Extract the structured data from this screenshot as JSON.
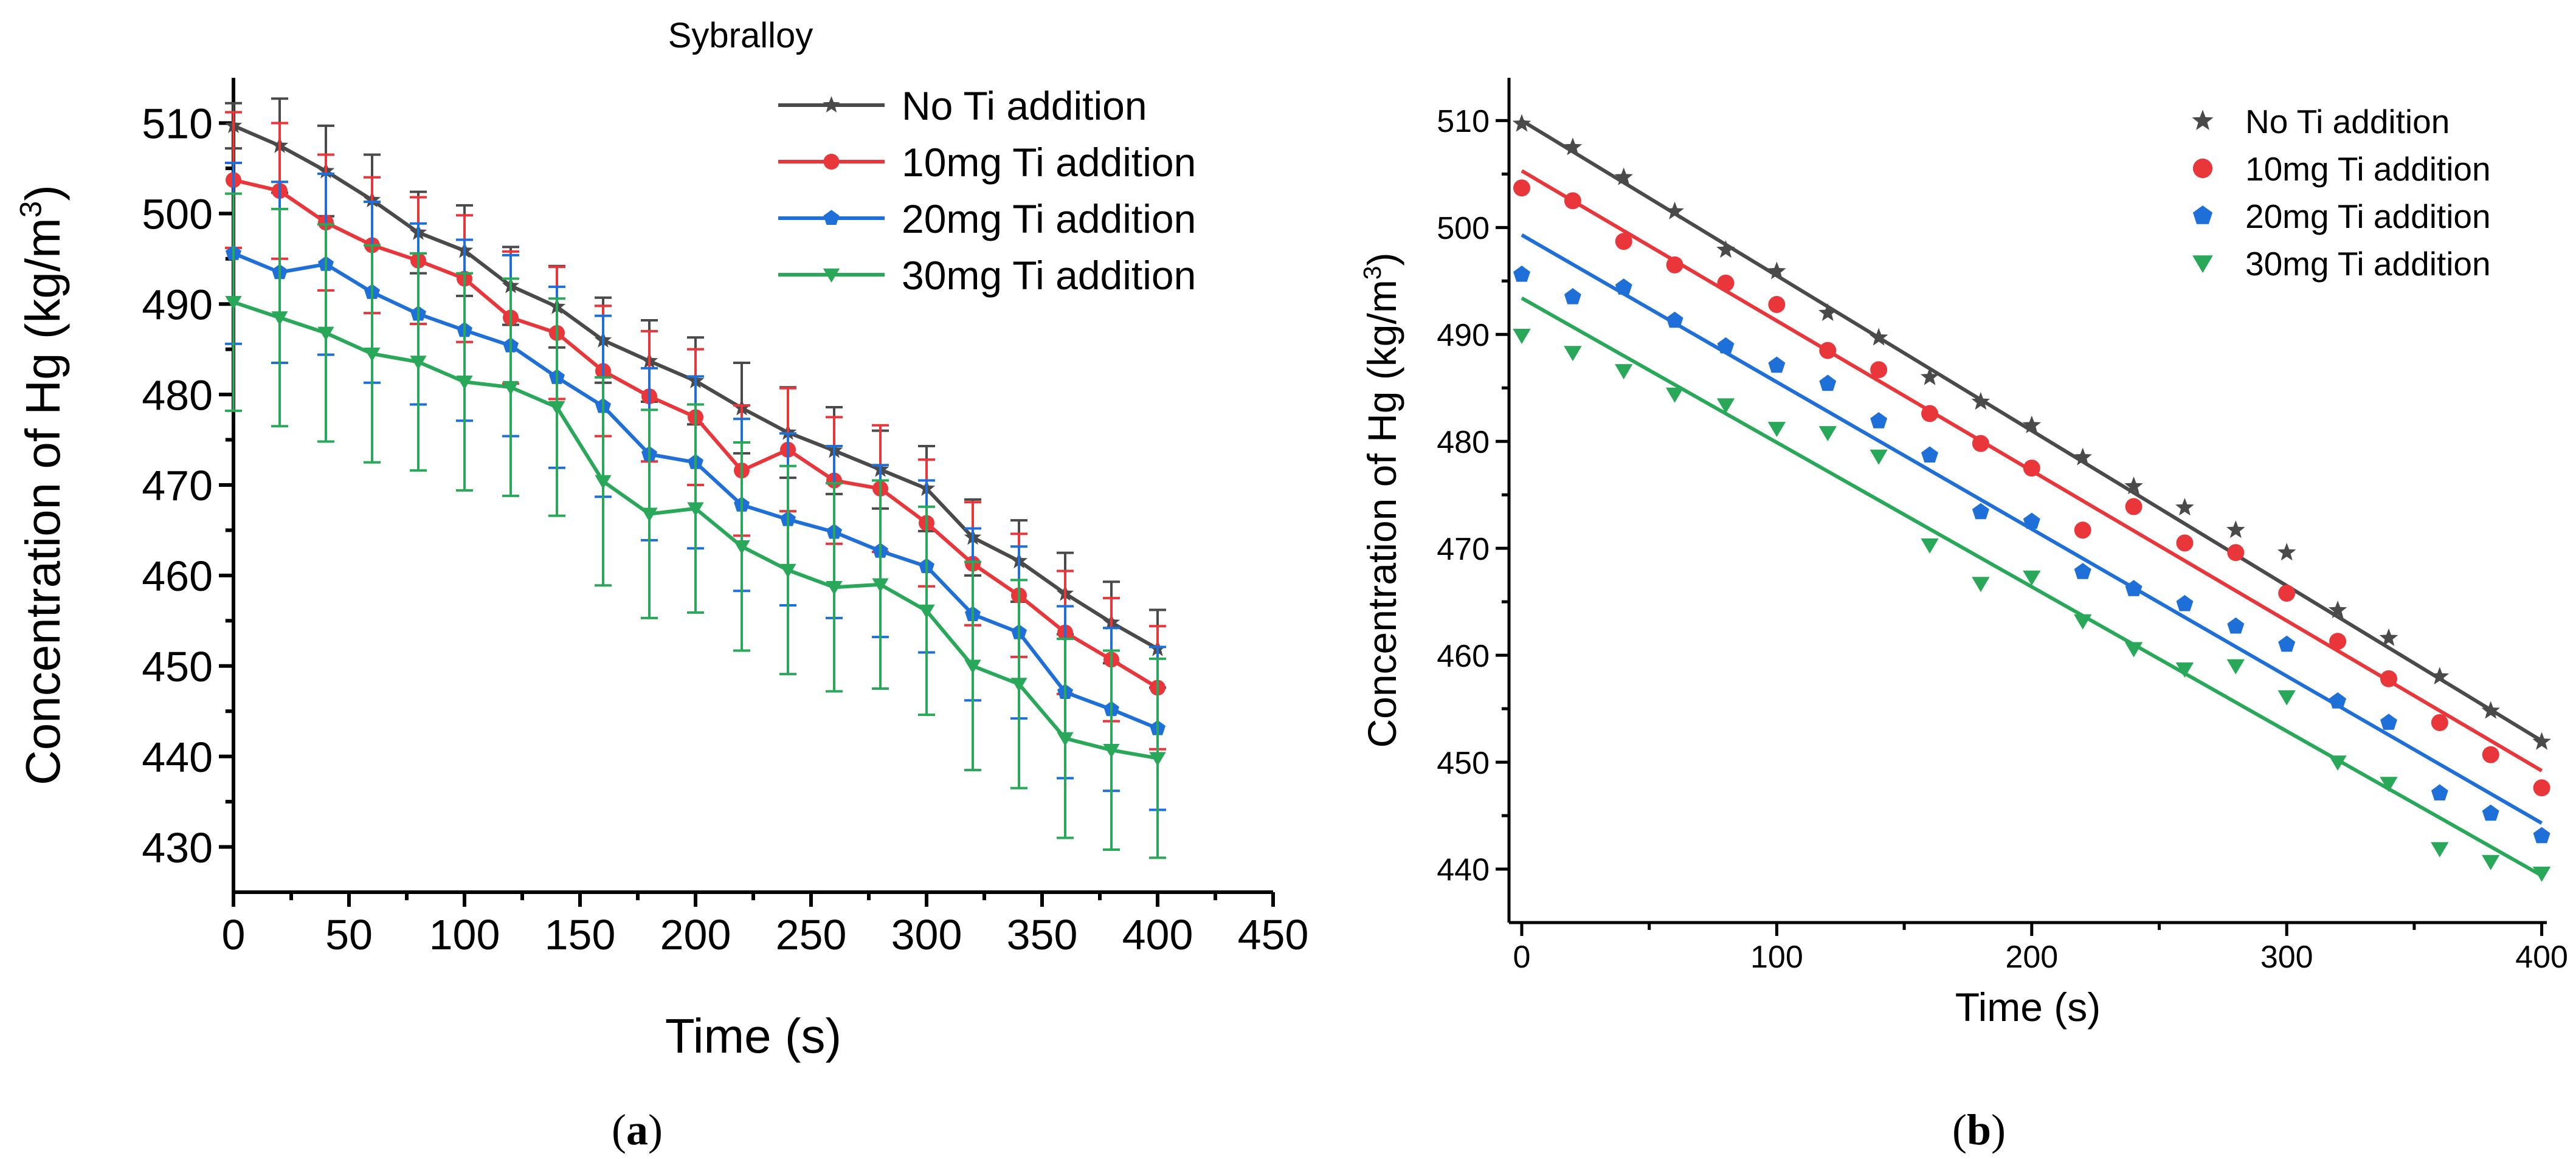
{
  "colors": {
    "no_ti": "#4a4a4a",
    "ti_10": "#e8363a",
    "ti_20": "#1f6fd8",
    "ti_30": "#2aa85a",
    "axis": "#000000"
  },
  "chart_data": [
    {
      "id": "a",
      "type": "line",
      "caption_open": "(",
      "caption_letter": "a",
      "caption_close": ")",
      "title": "Sybralloy",
      "xlabel": "Time (s)",
      "ylabel_main": "Concentration of Hg (kg/m",
      "ylabel_sup": "3",
      "ylabel_close": ")",
      "xlim": [
        0,
        450
      ],
      "ylim": [
        425,
        515
      ],
      "xticks": [
        0,
        50,
        100,
        150,
        200,
        250,
        300,
        350,
        400,
        450
      ],
      "yticks": [
        430,
        440,
        450,
        460,
        470,
        480,
        490,
        500,
        510
      ],
      "error_bars": true,
      "legend_position": "top-right",
      "x": [
        0,
        20,
        40,
        60,
        80,
        100,
        120,
        140,
        160,
        180,
        200,
        220,
        240,
        260,
        280,
        300,
        320,
        340,
        360,
        380,
        400
      ],
      "series": [
        {
          "name": "No Ti addition",
          "marker": "star",
          "values": [
            509.7,
            507.5,
            504.7,
            501.5,
            497.9,
            495.9,
            492.0,
            489.7,
            486.0,
            483.7,
            481.5,
            478.5,
            475.8,
            473.8,
            471.7,
            469.6,
            464.2,
            461.6,
            458.0,
            454.8,
            451.9
          ],
          "errors": [
            2.5,
            5.2,
            5.0,
            5.0,
            4.5,
            5.0,
            4.3,
            4.5,
            4.7,
            4.5,
            4.8,
            5.0,
            5.0,
            4.8,
            4.3,
            4.7,
            4.2,
            4.5,
            4.5,
            4.5,
            4.3
          ]
        },
        {
          "name": "10mg Ti addition",
          "marker": "circle",
          "values": [
            503.7,
            502.5,
            499.0,
            496.5,
            494.8,
            492.8,
            488.5,
            486.8,
            482.6,
            479.8,
            477.5,
            471.6,
            473.9,
            470.5,
            469.6,
            465.8,
            461.3,
            457.8,
            453.7,
            450.7,
            447.6
          ],
          "errors": [
            7.5,
            7.5,
            7.5,
            7.5,
            7.0,
            7.0,
            7.3,
            7.3,
            7.2,
            7.2,
            7.5,
            7.2,
            6.8,
            7.0,
            7.0,
            7.0,
            6.8,
            6.8,
            6.8,
            6.8,
            6.8
          ]
        },
        {
          "name": "20mg Ti addition",
          "marker": "pentagon",
          "values": [
            495.6,
            493.5,
            494.4,
            491.3,
            488.9,
            487.1,
            485.4,
            481.9,
            478.7,
            473.4,
            472.5,
            467.8,
            466.2,
            464.8,
            462.7,
            461.0,
            455.7,
            453.7,
            447.1,
            445.2,
            443.1
          ],
          "errors": [
            10.0,
            10.0,
            10.0,
            10.0,
            10.0,
            10.0,
            10.0,
            10.0,
            10.0,
            9.5,
            9.5,
            9.5,
            9.5,
            9.5,
            9.5,
            9.5,
            9.5,
            9.5,
            9.5,
            9.0,
            9.0
          ]
        },
        {
          "name": "30mg Ti addition",
          "marker": "triangle-down",
          "values": [
            490.2,
            488.5,
            486.8,
            484.5,
            483.6,
            481.4,
            480.8,
            478.6,
            470.4,
            466.8,
            467.4,
            463.2,
            460.6,
            458.7,
            459.0,
            456.1,
            450.0,
            448.0,
            442.0,
            440.7,
            439.8
          ],
          "errors": [
            12.0,
            12.0,
            12.0,
            12.0,
            12.0,
            12.0,
            12.0,
            12.0,
            11.5,
            11.5,
            11.5,
            11.5,
            11.5,
            11.5,
            11.5,
            11.5,
            11.5,
            11.5,
            11.0,
            11.0,
            11.0
          ]
        }
      ]
    },
    {
      "id": "b",
      "type": "scatter",
      "caption_open": "(",
      "caption_letter": "b",
      "caption_close": ")",
      "title": "",
      "xlabel": "Time (s)",
      "ylabel_main": "Concentration of Hg (kg/m",
      "ylabel_sup": "3",
      "ylabel_close": ")",
      "xlim": [
        -5,
        402
      ],
      "ylim": [
        435,
        514
      ],
      "xticks": [
        0,
        100,
        200,
        300,
        400
      ],
      "yticks": [
        440,
        450,
        460,
        470,
        480,
        490,
        500,
        510
      ],
      "error_bars": false,
      "fit_lines": true,
      "legend_position": "top-right",
      "x": [
        0,
        20,
        40,
        60,
        80,
        100,
        120,
        140,
        160,
        180,
        200,
        220,
        240,
        260,
        280,
        300,
        320,
        340,
        360,
        380,
        400
      ],
      "series": [
        {
          "name": "No Ti addition",
          "marker": "star",
          "values": [
            509.7,
            507.5,
            504.7,
            501.5,
            497.9,
            495.9,
            492.0,
            489.7,
            486.0,
            483.7,
            481.5,
            478.5,
            475.8,
            473.8,
            471.7,
            469.6,
            464.2,
            461.6,
            458.0,
            454.8,
            451.9
          ],
          "fit": [
            510.0,
            452.0
          ]
        },
        {
          "name": "10mg Ti addition",
          "marker": "circle",
          "values": [
            503.7,
            502.5,
            498.7,
            496.5,
            494.8,
            492.8,
            488.5,
            486.7,
            482.6,
            479.8,
            477.5,
            471.7,
            473.9,
            470.5,
            469.6,
            465.8,
            461.3,
            457.8,
            453.7,
            450.7,
            447.6
          ],
          "fit": [
            505.3,
            449.2
          ]
        },
        {
          "name": "20mg Ti addition",
          "marker": "pentagon",
          "values": [
            495.6,
            493.5,
            494.4,
            491.3,
            488.9,
            487.1,
            485.4,
            481.9,
            478.7,
            473.4,
            472.5,
            467.8,
            466.2,
            464.8,
            462.7,
            461.0,
            455.7,
            453.7,
            447.1,
            445.2,
            443.1
          ],
          "fit": [
            499.3,
            444.3
          ]
        },
        {
          "name": "30mg Ti addition",
          "marker": "triangle-down",
          "values": [
            489.9,
            488.3,
            486.6,
            484.4,
            483.4,
            481.2,
            480.8,
            478.6,
            470.3,
            466.7,
            467.3,
            463.2,
            460.6,
            458.7,
            459.0,
            456.1,
            450.0,
            448.0,
            441.9,
            440.7,
            439.6
          ],
          "fit": [
            493.4,
            439.4
          ]
        }
      ]
    }
  ]
}
